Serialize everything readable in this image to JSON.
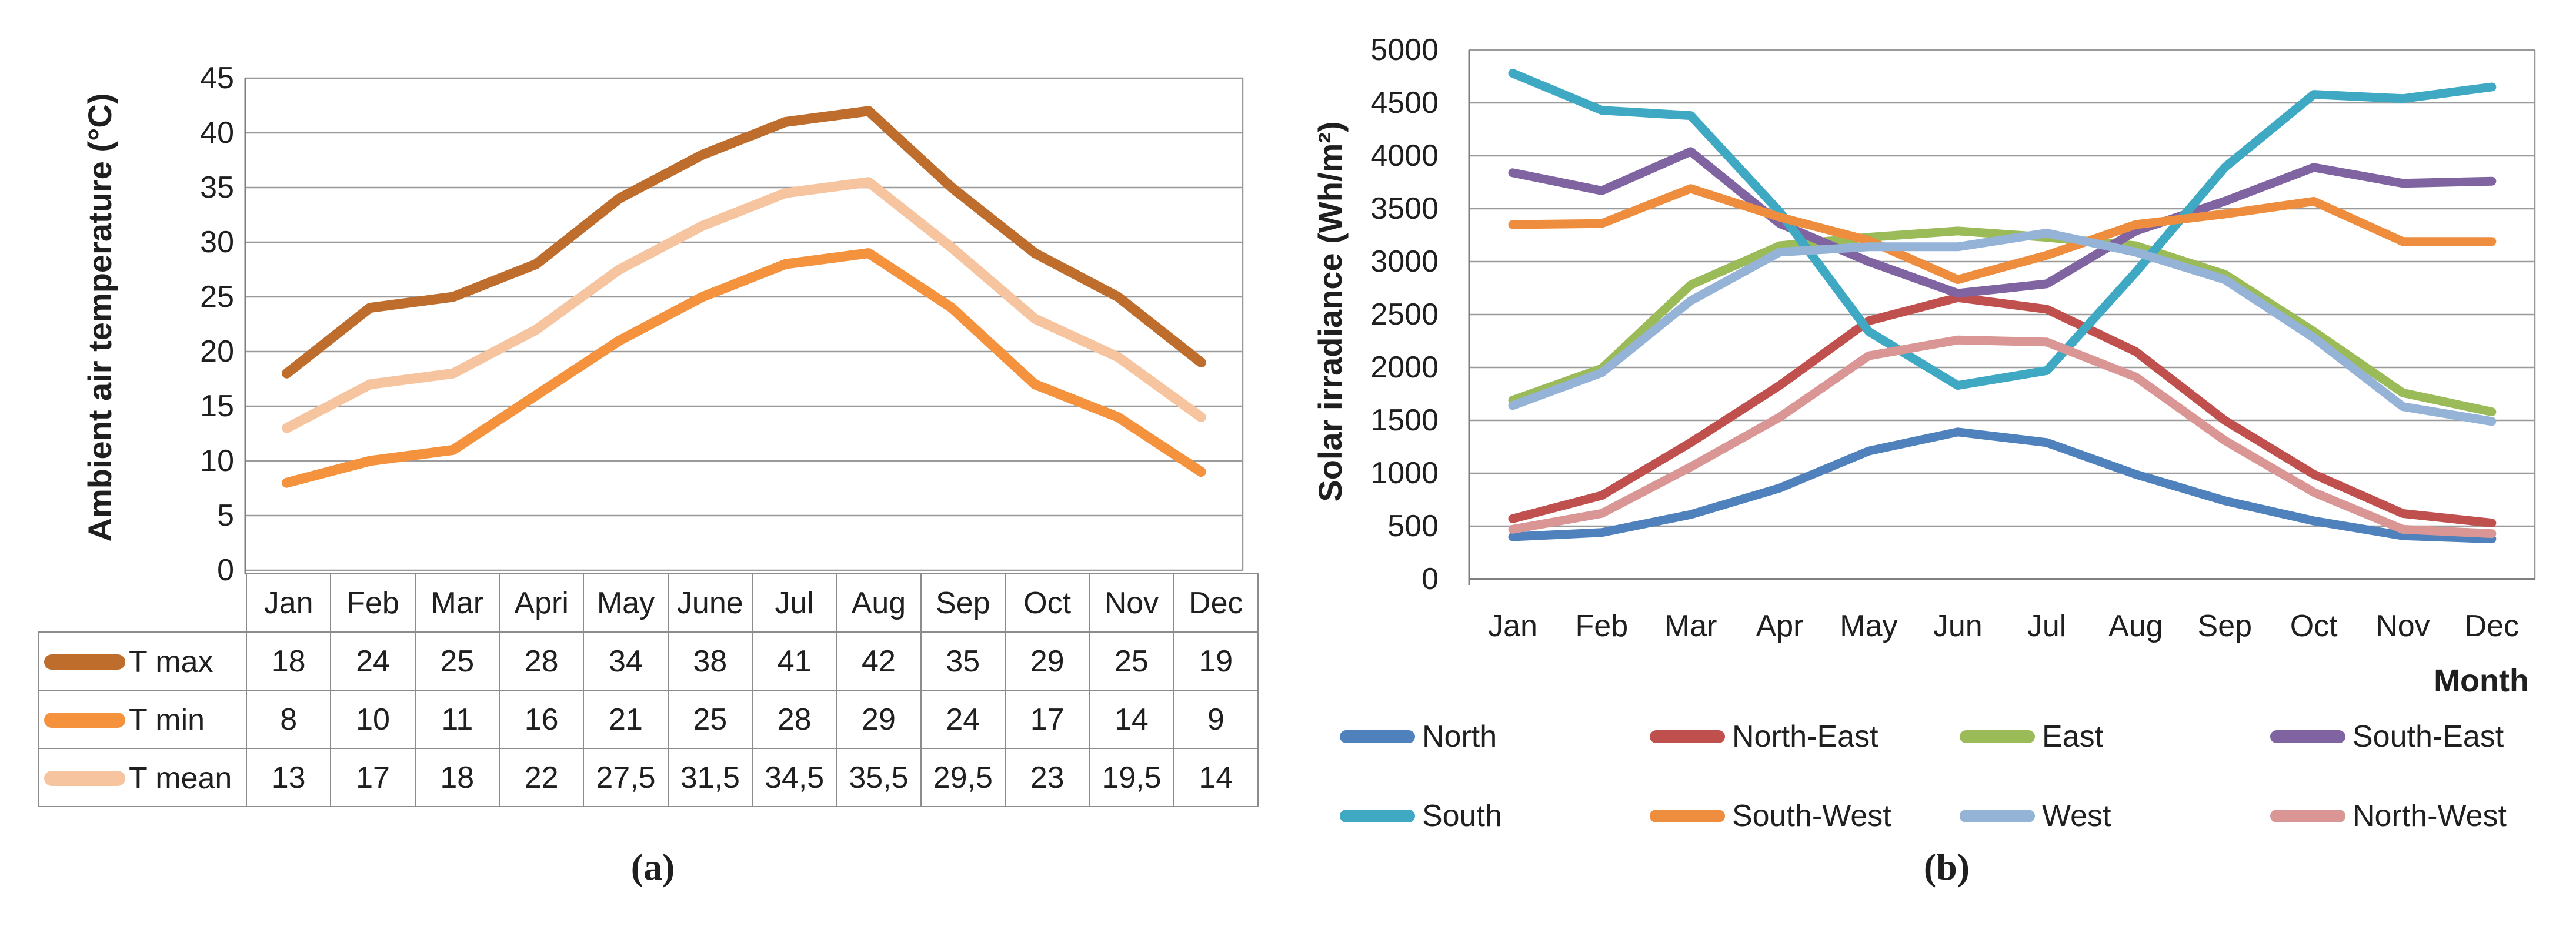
{
  "figure": {
    "caption_a": "(a)",
    "caption_b": "(b)"
  },
  "chart_data": [
    {
      "type": "line",
      "panel": "a",
      "title": "",
      "ylabel": "Ambient air temperature (°C)",
      "xlabel": "",
      "ylim": [
        0,
        45
      ],
      "ytick_step": 5,
      "grid": true,
      "legend_position": "table-left",
      "categories": [
        "Jan",
        "Feb",
        "Mar",
        "Apri",
        "May",
        "June",
        "Jul",
        "Aug",
        "Sep",
        "Oct",
        "Nov",
        "Dec"
      ],
      "series": [
        {
          "name": "T max",
          "color": "#BE6D2D",
          "values": [
            18,
            24,
            25,
            28,
            34,
            38,
            41,
            42,
            35,
            29,
            25,
            19
          ]
        },
        {
          "name": "T min",
          "color": "#F5923E",
          "values": [
            8,
            10,
            11,
            16,
            21,
            25,
            28,
            29,
            24,
            17,
            14,
            9
          ]
        },
        {
          "name": "T mean",
          "color": "#F7C4A0",
          "values": [
            13,
            17,
            18,
            22,
            27.5,
            31.5,
            34.5,
            35.5,
            29.5,
            23,
            19.5,
            14
          ]
        }
      ]
    },
    {
      "type": "line",
      "panel": "b",
      "title": "",
      "ylabel": "Solar irradiance (Wh/m²)",
      "xlabel": "Month",
      "ylim": [
        0,
        5000
      ],
      "ytick_step": 500,
      "grid": true,
      "legend_position": "bottom",
      "categories": [
        "Jan",
        "Feb",
        "Mar",
        "Apr",
        "May",
        "Jun",
        "Jul",
        "Aug",
        "Sep",
        "Oct",
        "Nov",
        "Dec"
      ],
      "series": [
        {
          "name": "North",
          "color": "#4F81BD",
          "values": [
            400,
            440,
            610,
            860,
            1210,
            1390,
            1290,
            990,
            740,
            550,
            410,
            380
          ]
        },
        {
          "name": "North-East",
          "color": "#C0504D",
          "values": [
            570,
            790,
            1290,
            1830,
            2440,
            2660,
            2550,
            2150,
            1500,
            990,
            620,
            530
          ]
        },
        {
          "name": "East",
          "color": "#9BBB59",
          "values": [
            1690,
            1990,
            2780,
            3150,
            3230,
            3290,
            3230,
            3150,
            2880,
            2340,
            1760,
            1580
          ]
        },
        {
          "name": "South-East",
          "color": "#8064A2",
          "values": [
            3840,
            3670,
            4040,
            3360,
            3000,
            2700,
            2790,
            3290,
            3570,
            3890,
            3740,
            3760
          ]
        },
        {
          "name": "South",
          "color": "#3FA9C4",
          "values": [
            4780,
            4430,
            4380,
            3470,
            2340,
            1830,
            1970,
            2900,
            3890,
            4580,
            4540,
            4650
          ]
        },
        {
          "name": "South-West",
          "color": "#EE8D3E",
          "values": [
            3350,
            3360,
            3690,
            3420,
            3200,
            2830,
            3060,
            3350,
            3450,
            3570,
            3190,
            3190
          ]
        },
        {
          "name": "West",
          "color": "#95B3D7",
          "values": [
            1640,
            1950,
            2630,
            3090,
            3140,
            3140,
            3270,
            3090,
            2830,
            2280,
            1630,
            1490
          ]
        },
        {
          "name": "North-West",
          "color": "#D99694",
          "values": [
            470,
            620,
            1060,
            1530,
            2110,
            2260,
            2240,
            1910,
            1310,
            820,
            470,
            430
          ]
        }
      ]
    }
  ],
  "table": {
    "header_months": [
      "Jan",
      "Feb",
      "Mar",
      "Apri",
      "May",
      "June",
      "Jul",
      "Aug",
      "Sep",
      "Oct",
      "Nov",
      "Dec"
    ],
    "rows": [
      {
        "label": "T max",
        "display_values": [
          "18",
          "24",
          "25",
          "28",
          "34",
          "38",
          "41",
          "42",
          "35",
          "29",
          "25",
          "19"
        ]
      },
      {
        "label": "T min",
        "display_values": [
          "8",
          "10",
          "11",
          "16",
          "21",
          "25",
          "28",
          "29",
          "24",
          "17",
          "14",
          "9"
        ]
      },
      {
        "label": "T mean",
        "display_values": [
          "13",
          "17",
          "18",
          "22",
          "27,5",
          "31,5",
          "34,5",
          "35,5",
          "29,5",
          "23",
          "19,5",
          "14"
        ]
      }
    ]
  },
  "legend_b": {
    "row1": [
      "North",
      "North-East",
      "East",
      "South-East"
    ],
    "row2": [
      "South",
      "South-West",
      "West",
      "North-West"
    ]
  },
  "axis_colors": {
    "gridline": "#9a9a9a",
    "axis": "#7f7f7f"
  }
}
